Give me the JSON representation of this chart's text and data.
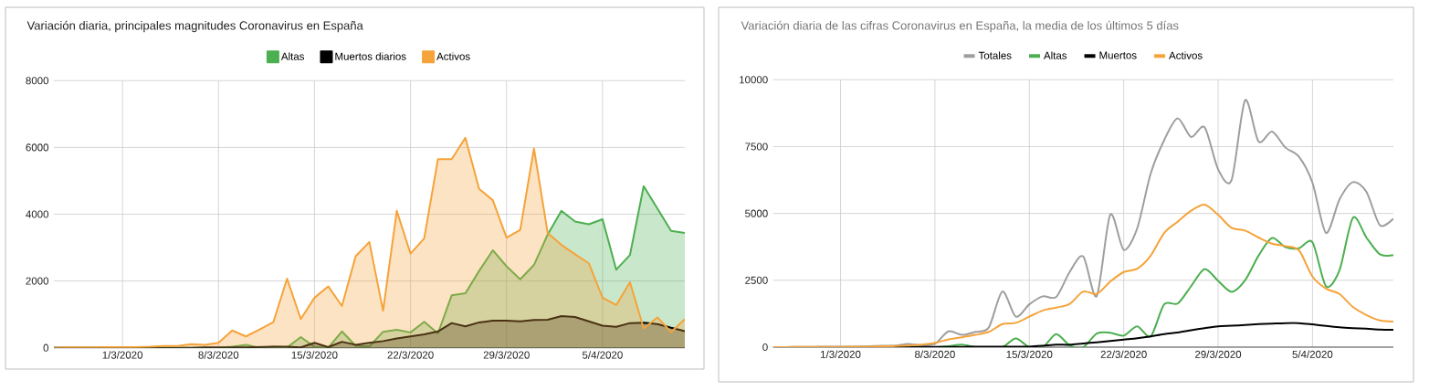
{
  "chart_data": [
    {
      "type": "area",
      "title": "Variación diaria, principales magnitudes Coronavirus en España",
      "x": [
        "2020-02-25",
        "2020-02-26",
        "2020-02-27",
        "2020-02-28",
        "2020-02-29",
        "2020-03-01",
        "2020-03-02",
        "2020-03-03",
        "2020-03-04",
        "2020-03-05",
        "2020-03-06",
        "2020-03-07",
        "2020-03-08",
        "2020-03-09",
        "2020-03-10",
        "2020-03-11",
        "2020-03-12",
        "2020-03-13",
        "2020-03-14",
        "2020-03-15",
        "2020-03-16",
        "2020-03-17",
        "2020-03-18",
        "2020-03-19",
        "2020-03-20",
        "2020-03-21",
        "2020-03-22",
        "2020-03-23",
        "2020-03-24",
        "2020-03-25",
        "2020-03-26",
        "2020-03-27",
        "2020-03-28",
        "2020-03-29",
        "2020-03-30",
        "2020-03-31",
        "2020-04-01",
        "2020-04-02",
        "2020-04-03",
        "2020-04-04",
        "2020-04-05",
        "2020-04-06",
        "2020-04-07",
        "2020-04-08",
        "2020-04-09",
        "2020-04-10",
        "2020-04-11"
      ],
      "series": [
        {
          "name": "Altas",
          "color": "#4caf50",
          "values": [
            0,
            0,
            0,
            0,
            0,
            0,
            0,
            0,
            0,
            0,
            0,
            0,
            0,
            30,
            90,
            0,
            30,
            10,
            320,
            30,
            0,
            490,
            60,
            40,
            480,
            540,
            460,
            780,
            430,
            1570,
            1630,
            2300,
            2920,
            2440,
            2050,
            2480,
            3390,
            4100,
            3780,
            3700,
            3850,
            2340,
            2780,
            4840,
            4170,
            3500,
            3440
          ]
        },
        {
          "name": "Muertos diarios",
          "color": "#000000",
          "values": [
            0,
            0,
            0,
            0,
            0,
            0,
            0,
            0,
            0,
            0,
            0,
            10,
            10,
            10,
            10,
            20,
            30,
            30,
            10,
            150,
            20,
            180,
            90,
            150,
            200,
            280,
            340,
            400,
            490,
            740,
            640,
            760,
            810,
            810,
            790,
            830,
            840,
            950,
            920,
            790,
            660,
            630,
            740,
            750,
            710,
            600,
            500
          ]
        },
        {
          "name": "Activos",
          "color": "#f5a33a",
          "values": [
            0,
            10,
            10,
            10,
            20,
            20,
            20,
            30,
            50,
            50,
            110,
            90,
            150,
            520,
            340,
            550,
            770,
            2070,
            860,
            1500,
            1840,
            1250,
            2740,
            3170,
            1110,
            4100,
            2820,
            3280,
            5650,
            5650,
            6290,
            4760,
            4420,
            3300,
            3530,
            5970,
            3440,
            3080,
            2800,
            2530,
            1500,
            1280,
            1960,
            580,
            910,
            470,
            860
          ]
        }
      ],
      "xlim": [
        "2020-02-25",
        "2020-04-11"
      ],
      "xticks": [
        {
          "value": "2020-03-01",
          "label": "1/3/2020"
        },
        {
          "value": "2020-03-08",
          "label": "8/3/2020"
        },
        {
          "value": "2020-03-15",
          "label": "15/3/2020"
        },
        {
          "value": "2020-03-22",
          "label": "22/3/2020"
        },
        {
          "value": "2020-03-29",
          "label": "29/3/2020"
        },
        {
          "value": "2020-04-05",
          "label": "5/4/2020"
        }
      ],
      "ylim": [
        0,
        8000
      ],
      "yticks": [
        0,
        2000,
        4000,
        6000,
        8000
      ],
      "grid": true,
      "legend": "top"
    },
    {
      "type": "line",
      "title": "Variación diaria de las cifras Coronavirus en España, la media de los últimos 5 días",
      "x": [
        "2020-02-25",
        "2020-02-26",
        "2020-02-27",
        "2020-02-28",
        "2020-02-29",
        "2020-03-01",
        "2020-03-02",
        "2020-03-03",
        "2020-03-04",
        "2020-03-05",
        "2020-03-06",
        "2020-03-07",
        "2020-03-08",
        "2020-03-09",
        "2020-03-10",
        "2020-03-11",
        "2020-03-12",
        "2020-03-13",
        "2020-03-14",
        "2020-03-15",
        "2020-03-16",
        "2020-03-17",
        "2020-03-18",
        "2020-03-19",
        "2020-03-20",
        "2020-03-21",
        "2020-03-22",
        "2020-03-23",
        "2020-03-24",
        "2020-03-25",
        "2020-03-26",
        "2020-03-27",
        "2020-03-28",
        "2020-03-29",
        "2020-03-30",
        "2020-03-31",
        "2020-04-01",
        "2020-04-02",
        "2020-04-03",
        "2020-04-04",
        "2020-04-05",
        "2020-04-06",
        "2020-04-07",
        "2020-04-08",
        "2020-04-09",
        "2020-04-10",
        "2020-04-11"
      ],
      "series": [
        {
          "name": "Totales",
          "color": "#9e9e9e",
          "values": [
            0,
            0,
            10,
            10,
            20,
            20,
            20,
            30,
            50,
            50,
            120,
            70,
            120,
            590,
            460,
            570,
            740,
            2080,
            1140,
            1600,
            1900,
            1880,
            2820,
            3390,
            1910,
            4950,
            3640,
            4440,
            6490,
            7740,
            8560,
            7860,
            8220,
            6650,
            6250,
            9230,
            7690,
            8060,
            7460,
            7120,
            6150,
            4270,
            5520,
            6170,
            5810,
            4560,
            4810
          ]
        },
        {
          "name": "Altas",
          "color": "#4caf50",
          "values": [
            null,
            null,
            null,
            null,
            null,
            null,
            null,
            null,
            null,
            null,
            null,
            0,
            0,
            30,
            90,
            0,
            0,
            0,
            320,
            0,
            0,
            490,
            60,
            0,
            510,
            540,
            430,
            780,
            400,
            1600,
            1630,
            2280,
            2920,
            2480,
            2070,
            2500,
            3420,
            4080,
            3740,
            3700,
            3920,
            2280,
            2870,
            4840,
            4100,
            3470,
            3440
          ]
        },
        {
          "name": "Muertos",
          "color": "#000000",
          "values": [
            null,
            null,
            null,
            null,
            null,
            null,
            null,
            null,
            null,
            0,
            0,
            10,
            10,
            10,
            10,
            20,
            20,
            20,
            20,
            20,
            50,
            90,
            90,
            140,
            180,
            230,
            280,
            330,
            400,
            490,
            550,
            630,
            710,
            780,
            800,
            830,
            860,
            880,
            900,
            900,
            850,
            790,
            740,
            710,
            690,
            660,
            650
          ]
        },
        {
          "name": "Activos",
          "color": "#f5a33a",
          "values": [
            0,
            0,
            10,
            10,
            10,
            10,
            20,
            20,
            30,
            40,
            60,
            90,
            160,
            290,
            370,
            460,
            570,
            860,
            910,
            1140,
            1370,
            1480,
            1620,
            2080,
            1990,
            2450,
            2810,
            2930,
            3420,
            4270,
            4690,
            5100,
            5330,
            4950,
            4460,
            4360,
            4100,
            3870,
            3780,
            3620,
            2640,
            2190,
            1990,
            1500,
            1200,
            1000,
            960
          ]
        }
      ],
      "xlim": [
        "2020-02-25",
        "2020-04-11"
      ],
      "xticks": [
        {
          "value": "2020-03-01",
          "label": "1/3/2020"
        },
        {
          "value": "2020-03-08",
          "label": "8/3/2020"
        },
        {
          "value": "2020-03-15",
          "label": "15/3/2020"
        },
        {
          "value": "2020-03-22",
          "label": "22/3/2020"
        },
        {
          "value": "2020-03-29",
          "label": "29/3/2020"
        },
        {
          "value": "2020-04-05",
          "label": "5/4/2020"
        }
      ],
      "ylim": [
        0,
        10000
      ],
      "yticks": [
        0,
        2500,
        5000,
        7500,
        10000
      ],
      "grid": true,
      "legend": "top"
    }
  ]
}
